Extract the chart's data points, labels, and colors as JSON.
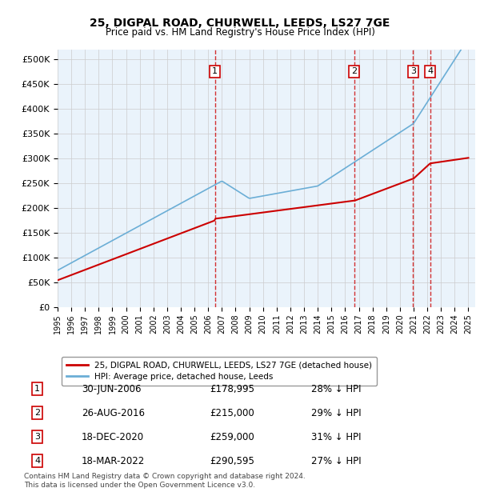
{
  "title_line1": "25, DIGPAL ROAD, CHURWELL, LEEDS, LS27 7GE",
  "title_line2": "Price paid vs. HM Land Registry's House Price Index (HPI)",
  "legend_label_red": "25, DIGPAL ROAD, CHURWELL, LEEDS, LS27 7GE (detached house)",
  "legend_label_blue": "HPI: Average price, detached house, Leeds",
  "footer": "Contains HM Land Registry data © Crown copyright and database right 2024.\nThis data is licensed under the Open Government Licence v3.0.",
  "transactions": [
    {
      "num": 1,
      "date": "30-JUN-2006",
      "price": 178995,
      "pct": "28%",
      "x_year": 2006.49
    },
    {
      "num": 2,
      "date": "26-AUG-2016",
      "price": 215000,
      "pct": "29%",
      "x_year": 2016.65
    },
    {
      "num": 3,
      "date": "18-DEC-2020",
      "price": 259000,
      "pct": "31%",
      "x_year": 2020.96
    },
    {
      "num": 4,
      "date": "18-MAR-2022",
      "price": 290595,
      "pct": "27%",
      "x_year": 2022.21
    }
  ],
  "hpi_color": "#6baed6",
  "price_color": "#cc0000",
  "dashed_color": "#cc0000",
  "background_color": "#eaf3fb",
  "ylim": [
    0,
    520000
  ],
  "xlim_start": 1995.0,
  "xlim_end": 2025.5,
  "yticks": [
    0,
    50000,
    100000,
    150000,
    200000,
    250000,
    300000,
    350000,
    400000,
    450000,
    500000
  ],
  "xticks": [
    1995,
    1996,
    1997,
    1998,
    1999,
    2000,
    2001,
    2002,
    2003,
    2004,
    2005,
    2006,
    2007,
    2008,
    2009,
    2010,
    2011,
    2012,
    2013,
    2014,
    2015,
    2016,
    2017,
    2018,
    2019,
    2020,
    2021,
    2022,
    2023,
    2024,
    2025
  ]
}
